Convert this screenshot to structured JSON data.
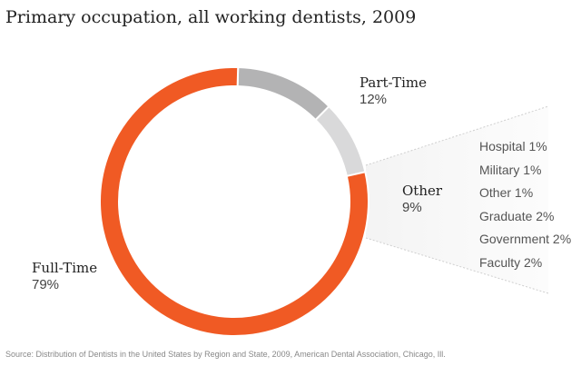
{
  "chart_data": {
    "type": "pie",
    "style": "donut",
    "title": "Primary occupation, all working dentists, 2009",
    "slices": [
      {
        "label": "Full-Time",
        "value": 79,
        "display": "79%",
        "color": "#f05a24"
      },
      {
        "label": "Part-Time",
        "value": 12,
        "display": "12%",
        "color": "#b3b3b4"
      },
      {
        "label": "Other",
        "value": 9,
        "display": "9%",
        "color": "#d9d9da"
      }
    ],
    "other_breakdown": [
      {
        "label": "Hospital",
        "value": 1,
        "display": "Hospital 1%"
      },
      {
        "label": "Military",
        "value": 1,
        "display": "Military 1%"
      },
      {
        "label": "Other",
        "value": 1,
        "display": "Other 1%"
      },
      {
        "label": "Graduate",
        "value": 2,
        "display": "Graduate 2%"
      },
      {
        "label": "Government",
        "value": 2,
        "display": "Government 2%"
      },
      {
        "label": "Faculty",
        "value": 2,
        "display": "Faculty 2%"
      }
    ],
    "source": "Source: Distribution of Dentists in the United States by Region and State, 2009, American Dental Association, Chicago, Ill."
  }
}
